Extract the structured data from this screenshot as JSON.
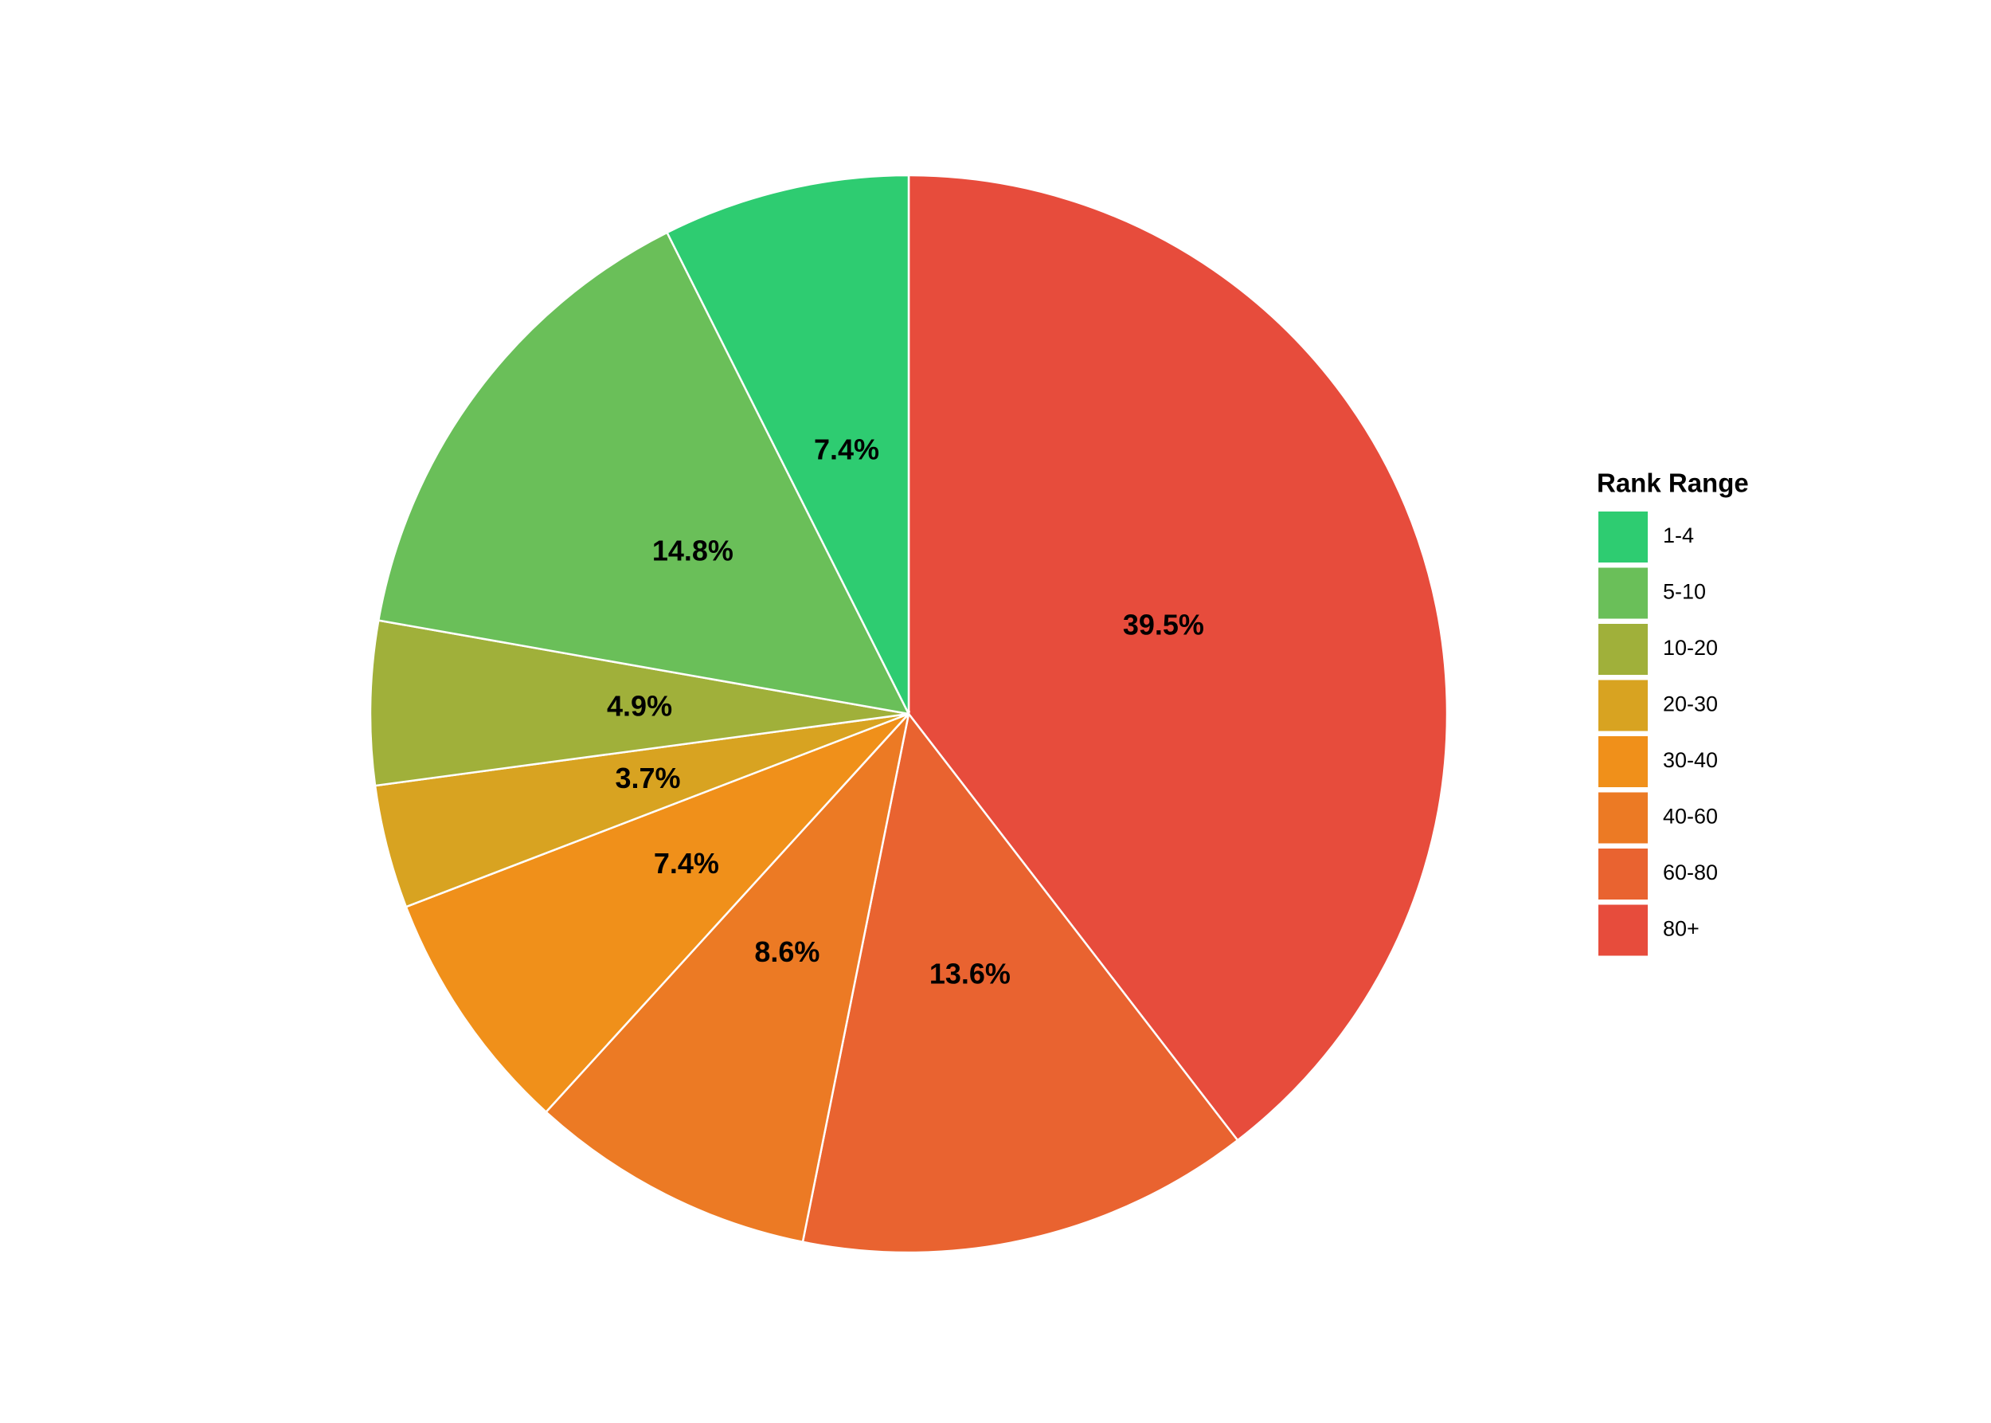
{
  "chart_data": {
    "type": "pie",
    "legend_title": "Rank Range",
    "categories": [
      "1-4",
      "5-10",
      "10-20",
      "20-30",
      "30-40",
      "40-60",
      "60-80",
      "80+"
    ],
    "values": [
      7.4,
      14.8,
      4.9,
      3.7,
      7.4,
      8.6,
      13.6,
      39.5
    ],
    "value_labels": [
      "7.4%",
      "14.8%",
      "4.9%",
      "3.7%",
      "7.4%",
      "8.6%",
      "13.6%",
      "39.5%"
    ],
    "colors": [
      "#2ecc71",
      "#6abf59",
      "#a0b03a",
      "#d8a321",
      "#f0901a",
      "#ec7a24",
      "#e96330",
      "#e74c3c"
    ],
    "legend": "right"
  }
}
